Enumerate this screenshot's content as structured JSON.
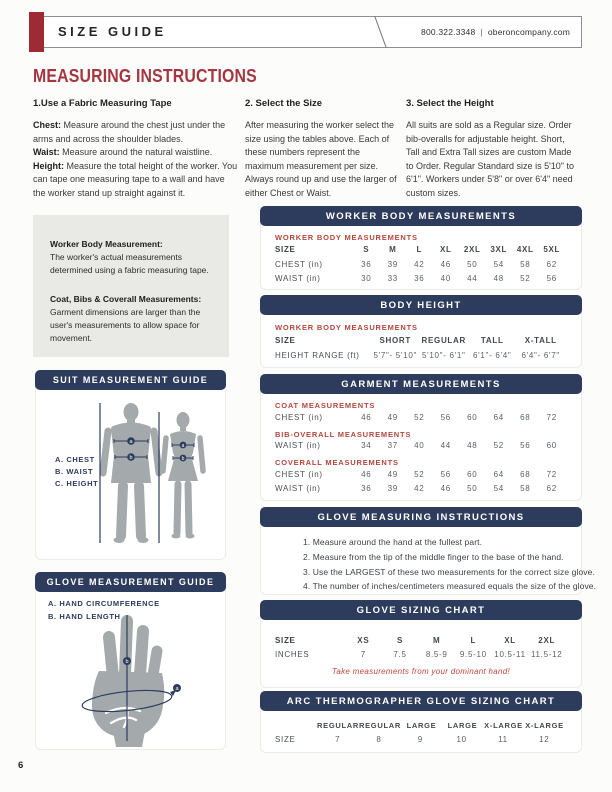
{
  "colors": {
    "navy": "#2d3c5d",
    "brand_red": "#9e2b33",
    "title_red": "#a53540",
    "subhead_red": "#b5463c"
  },
  "page_number": "6",
  "header": {
    "title": "SIZE GUIDE",
    "phone": "800.322.3348",
    "divider": "|",
    "website": "oberoncompany.com"
  },
  "title": "MEASURING INSTRUCTIONS",
  "steps": {
    "one": {
      "heading": "1.Use a Fabric Measuring Tape",
      "chest_label": "Chest:",
      "chest_text": " Measure around the chest just under the arms and across the shoulder blades.",
      "waist_label": "Waist:",
      "waist_text": " Measure around the natural waistline.",
      "height_label": "Height:",
      "height_text": " Measure the total height of the worker. You can tape one measuring tape to a wall and have the worker stand up straight against it."
    },
    "two": {
      "heading": "2. Select the Size",
      "body": "After measuring the worker select the size using the tables above. Each of these numbers represent the maximum measurement per size. Always round up and use the larger of either Chest or Waist."
    },
    "three": {
      "heading": "3. Select the Height",
      "body": "All suits are sold as a Regular size. Order bib-overalls for adjustable height. Short, Tall and Extra Tall sizes are custom Made to Order. Regular Standard size is 5'10\" to 6'1\". Workers under 5'8\" or over 6'4\" need custom sizes."
    }
  },
  "info_box": {
    "first_heading": "Worker Body Measurement:",
    "first_body": "The worker's actual measurements determined using a fabric measuring tape.",
    "second_heading": "Coat, Bibs & Coverall Measurements:",
    "second_body": "Garment dimensions are larger than the user's measurements to allow space for movement."
  },
  "suit_guide": {
    "title": "SUIT MEASUREMENT GUIDE",
    "labels": [
      "A. CHEST",
      "B. WAIST",
      "C. HEIGHT"
    ],
    "marker_a": "a",
    "marker_b": "b"
  },
  "glove_guide": {
    "title": "GLOVE MEASUREMENT GUIDE",
    "labels": [
      "A. HAND CIRCUMFERENCE",
      "B. HAND LENGTH"
    ],
    "marker_a": "a",
    "marker_b": "b"
  },
  "worker_table": {
    "title": "WORKER BODY MEASUREMENTS",
    "subhead": "WORKER BODY MEASUREMENTS",
    "size_label": "SIZE",
    "sizes": [
      "S",
      "M",
      "L",
      "XL",
      "2XL",
      "3XL",
      "4XL",
      "5XL"
    ],
    "chest_label": "CHEST (in)",
    "chest": [
      "36",
      "39",
      "42",
      "46",
      "50",
      "54",
      "58",
      "62"
    ],
    "waist_label": "WAIST (in)",
    "waist": [
      "30",
      "33",
      "36",
      "40",
      "44",
      "48",
      "52",
      "56"
    ]
  },
  "body_height": {
    "title": "BODY HEIGHT",
    "subhead": "WORKER BODY MEASUREMENTS",
    "size_label": "SIZE",
    "sizes": [
      "SHORT",
      "REGULAR",
      "TALL",
      "X-TALL"
    ],
    "range_label": "HEIGHT RANGE (ft)",
    "ranges": [
      "5'7\"- 5'10\"",
      "5'10\"- 6'1\"",
      "6'1\"- 6'4\"",
      "6'4\"- 6'7\""
    ]
  },
  "garment": {
    "title": "GARMENT MEASUREMENTS",
    "coat": {
      "subhead": "COAT MEASUREMENTS",
      "chest_label": "CHEST (in)",
      "chest": [
        "46",
        "49",
        "52",
        "56",
        "60",
        "64",
        "68",
        "72"
      ]
    },
    "bib": {
      "subhead": "BIB-OVERALL MEASUREMENTS",
      "waist_label": "WAIST (in)",
      "waist": [
        "34",
        "37",
        "40",
        "44",
        "48",
        "52",
        "56",
        "60"
      ]
    },
    "coverall": {
      "subhead": "COVERALL MEASUREMENTS",
      "chest_label": "CHEST (in)",
      "chest": [
        "46",
        "49",
        "52",
        "56",
        "60",
        "64",
        "68",
        "72"
      ],
      "waist_label": "WAIST (in)",
      "waist": [
        "36",
        "39",
        "42",
        "46",
        "50",
        "54",
        "58",
        "62"
      ]
    }
  },
  "glove_instructions": {
    "title": "GLOVE MEASURING INSTRUCTIONS",
    "items": [
      "1. Measure around the hand at the fullest part.",
      "2. Measure from the tip of the middle finger to the base of the hand.",
      "3. Use the LARGEST of these two measurements for the correct size glove.",
      "4. The number of inches/centimeters measured equals the size of the glove."
    ]
  },
  "glove_sizing": {
    "title": "GLOVE SIZING CHART",
    "size_label": "SIZE",
    "sizes": [
      "XS",
      "S",
      "M",
      "L",
      "XL",
      "2XL"
    ],
    "inches_label": "INCHES",
    "inches": [
      "7",
      "7.5",
      "8.5-9",
      "9.5-10",
      "10.5-11",
      "11.5-12"
    ],
    "note": "Take measurements from your dominant hand!"
  },
  "arc_glove": {
    "title": "ARC THERMOGRAPHER GLOVE SIZING CHART",
    "headers": [
      "REGULAR",
      "REGULAR",
      "LARGE",
      "LARGE",
      "X-LARGE",
      "X-LARGE"
    ],
    "size_label": "SIZE",
    "values": [
      "7",
      "8",
      "9",
      "10",
      "11",
      "12"
    ]
  }
}
